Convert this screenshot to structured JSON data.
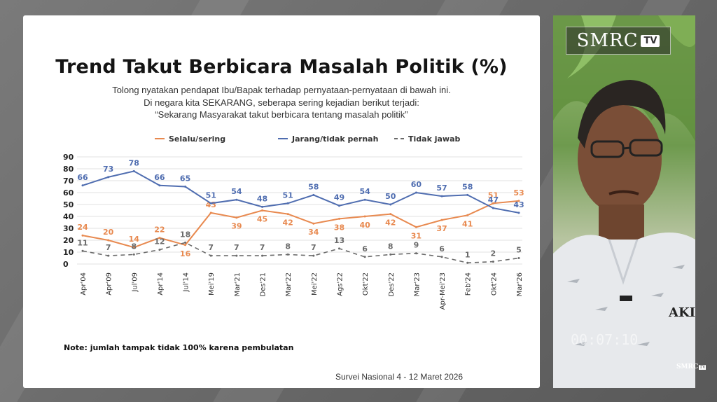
{
  "slide": {
    "title": "Trend Takut Berbicara Masalah Politik (%)",
    "subtitle_1": "Tolong nyatakan pendapat Ibu/Bapak terhadap pernyataan-pernyataan di bawah ini.",
    "subtitle_2": "Di negara kita SEKARANG, seberapa sering kejadian berikut terjadi:",
    "subtitle_3": "“Sekarang Masyarakat takut berbicara tentang masalah politik”",
    "note": "Note: jumlah tampak tidak 100% karena pembulatan",
    "source": "Survei Nasional 4 - 12 Maret 2026"
  },
  "video": {
    "logo_word": "SMRC",
    "logo_tv": "TV",
    "timer": "00:07:10",
    "watermark": "SMRC",
    "watermark_tv": "TV",
    "shirt_text": "AKI"
  },
  "colors": {
    "selalu": "#e8894f",
    "jarang": "#4f6db0",
    "tidak_jawab": "#6a6a6a"
  },
  "chart_data": {
    "type": "line",
    "categories": [
      "Apr'04",
      "Apr'09",
      "Jul'09",
      "Apr'14",
      "Jul'14",
      "Mei'19",
      "Mar'21",
      "Des'21",
      "Mar'22",
      "Mei'22",
      "Ags'22",
      "Okt'22",
      "Des'22",
      "Mar'23",
      "Apr-Mei'23",
      "Feb'24",
      "Okt'24",
      "Mar'26"
    ],
    "ylim": [
      0,
      90
    ],
    "yticks": [
      "0",
      "10",
      "20",
      "30",
      "40",
      "50",
      "60",
      "70",
      "80",
      "90"
    ],
    "legend_position": "top",
    "grid": "horizontal",
    "series": [
      {
        "key": "selalu",
        "name": "Selalu/sering",
        "values": [
          24,
          20,
          14,
          22,
          16,
          43,
          39,
          45,
          42,
          34,
          38,
          40,
          42,
          31,
          37,
          41,
          51,
          53
        ]
      },
      {
        "key": "jarang",
        "name": "Jarang/tidak pernah",
        "values": [
          66,
          73,
          78,
          66,
          65,
          51,
          54,
          48,
          51,
          58,
          49,
          54,
          50,
          60,
          57,
          58,
          47,
          43
        ]
      },
      {
        "key": "tidak_jawab",
        "name": "Tidak jawab",
        "dashed": true,
        "values": [
          11,
          7,
          8,
          12,
          18,
          7,
          7,
          7,
          8,
          7,
          13,
          6,
          8,
          9,
          6,
          1,
          2,
          5
        ]
      }
    ]
  }
}
